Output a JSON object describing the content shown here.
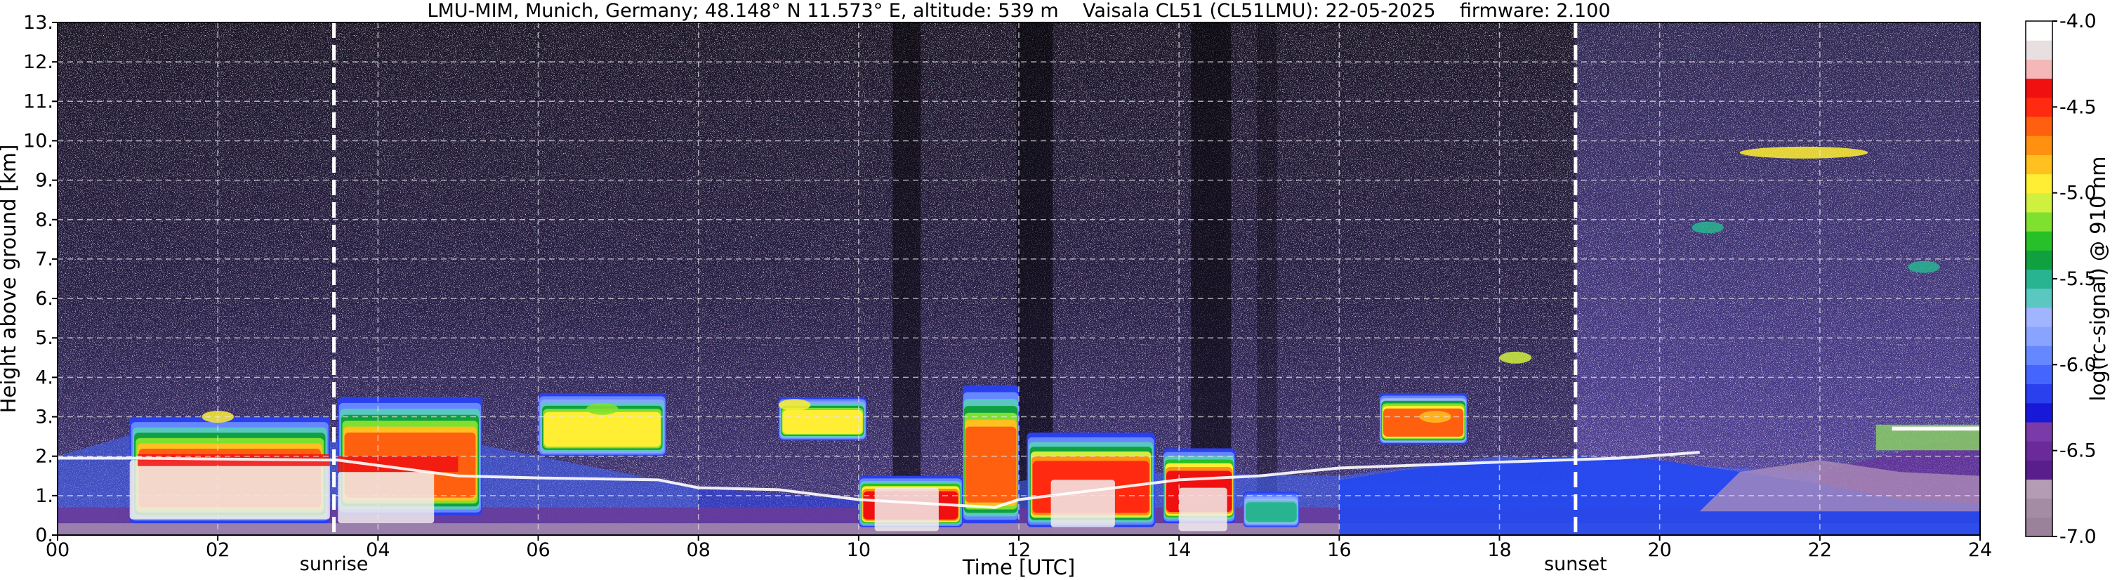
{
  "chart_data": {
    "type": "heatmap",
    "title": "LMU-MIM, Munich, Germany; 48.148° N 11.573° E, altitude: 539 m    Vaisala CL51 (CL51LMU): 22-05-2025    firmware: 2.100",
    "xlabel": "Time [UTC]",
    "ylabel": "Height above ground [km]",
    "colorbar_label": "log(rc-signal) @ 910 nm",
    "xlim": [
      0,
      24
    ],
    "ylim": [
      0,
      13
    ],
    "x_tick_labels": [
      "00",
      "02",
      "04",
      "06",
      "08",
      "10",
      "12",
      "14",
      "16",
      "18",
      "20",
      "22",
      "24"
    ],
    "y_tick_labels": [
      "0.",
      "1.",
      "2.",
      "3.",
      "4.",
      "5.",
      "6.",
      "7.",
      "8.",
      "9.",
      "10.",
      "11.",
      "12.",
      "13."
    ],
    "colorbar_range": [
      -7.0,
      -4.0
    ],
    "colorbar_tick_labels": [
      "-7.0",
      "-6.5",
      "-6.0",
      "-5.5",
      "-5.0",
      "-4.5",
      "-4.0"
    ],
    "grid": true,
    "events": [
      {
        "label": "sunrise",
        "x": 3.45
      },
      {
        "label": "sunset",
        "x": 18.95
      }
    ],
    "colormap": [
      "#9a829a",
      "#a48ca4",
      "#b49cb4",
      "#5a1e8c",
      "#6a2a9a",
      "#7a3aa8",
      "#1818d8",
      "#2a40ee",
      "#4466ff",
      "#6688ff",
      "#88a4ff",
      "#a0b4ff",
      "#5ac8c0",
      "#28b490",
      "#10a040",
      "#28c028",
      "#80e030",
      "#d0f040",
      "#ffee33",
      "#ffc020",
      "#ff9010",
      "#ff6010",
      "#ff2a10",
      "#f01010",
      "#f4b8b8",
      "#e8e0e0",
      "#ffffff"
    ],
    "layers": [
      {
        "name": "noise",
        "values": [
          [
            0.5,
            13,
            -6.4
          ]
        ]
      },
      {
        "name": "boundary-layer",
        "values": [
          [
            0,
            2.0,
            -5.2
          ],
          [
            1,
            2.6,
            -5.0
          ],
          [
            3,
            2.4,
            -4.6
          ],
          [
            5,
            2.4,
            -5.0
          ],
          [
            8,
            1.2,
            -6.2
          ],
          [
            10,
            0.9,
            -4.2
          ],
          [
            13,
            1.6,
            -4.4
          ],
          [
            16,
            1.5,
            -5.9
          ],
          [
            18,
            2.0,
            -5.9
          ],
          [
            22,
            1.6,
            -6.5
          ],
          [
            24,
            2.6,
            -5.2
          ]
        ]
      },
      {
        "name": "elevated-aerosol",
        "values": [
          [
            2.0,
            3.0,
            -5.0
          ],
          [
            6.8,
            3.2,
            -5.2
          ],
          [
            9.2,
            3.3,
            -4.9
          ],
          [
            17.2,
            3.0,
            -4.8
          ],
          [
            18.2,
            4.5,
            -5.1
          ],
          [
            21.8,
            9.7,
            -5.0
          ],
          [
            20.6,
            7.8,
            -5.5
          ],
          [
            23.3,
            6.8,
            -5.5
          ]
        ]
      }
    ]
  }
}
